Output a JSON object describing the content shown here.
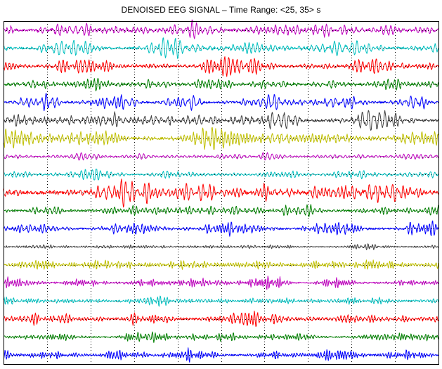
{
  "chart_data": {
    "type": "line",
    "title": "DENOISED EEG SIGNAL – Time Range: <25, 35> s",
    "xlabel": "",
    "ylabel": "",
    "xlim": [
      25,
      35
    ],
    "x_grid_ticks": [
      26,
      27,
      28,
      29,
      30,
      31,
      32,
      33,
      34
    ],
    "grid": "dotted",
    "tick_labels_shown": false,
    "channel_count": 19,
    "series": [
      {
        "color": "#bf00bf",
        "amplitude": 0.85,
        "dominant_freq_hz": 10
      },
      {
        "color": "#00bfbf",
        "amplitude": 0.85,
        "dominant_freq_hz": 10
      },
      {
        "color": "#ff0000",
        "amplitude": 0.85,
        "dominant_freq_hz": 10
      },
      {
        "color": "#008000",
        "amplitude": 0.75,
        "dominant_freq_hz": 10
      },
      {
        "color": "#0000ff",
        "amplitude": 0.75,
        "dominant_freq_hz": 10
      },
      {
        "color": "#404040",
        "amplitude": 1.0,
        "dominant_freq_hz": 10
      },
      {
        "color": "#bfbf00",
        "amplitude": 0.9,
        "dominant_freq_hz": 10
      },
      {
        "color": "#bf00bf",
        "amplitude": 0.35,
        "dominant_freq_hz": 10
      },
      {
        "color": "#00bfbf",
        "amplitude": 0.45,
        "dominant_freq_hz": 10
      },
      {
        "color": "#ff0000",
        "amplitude": 1.2,
        "dominant_freq_hz": 10
      },
      {
        "color": "#008000",
        "amplitude": 0.7,
        "dominant_freq_hz": 10
      },
      {
        "color": "#0000ff",
        "amplitude": 0.65,
        "dominant_freq_hz": 12
      },
      {
        "color": "#404040",
        "amplitude": 0.25,
        "dominant_freq_hz": 14
      },
      {
        "color": "#bfbf00",
        "amplitude": 0.6,
        "dominant_freq_hz": 16
      },
      {
        "color": "#bf00bf",
        "amplitude": 0.55,
        "dominant_freq_hz": 16
      },
      {
        "color": "#00bfbf",
        "amplitude": 0.45,
        "dominant_freq_hz": 14
      },
      {
        "color": "#ff0000",
        "amplitude": 0.7,
        "dominant_freq_hz": 12
      },
      {
        "color": "#008000",
        "amplitude": 0.5,
        "dominant_freq_hz": 16
      },
      {
        "color": "#0000ff",
        "amplitude": 0.6,
        "dominant_freq_hz": 16
      }
    ]
  }
}
